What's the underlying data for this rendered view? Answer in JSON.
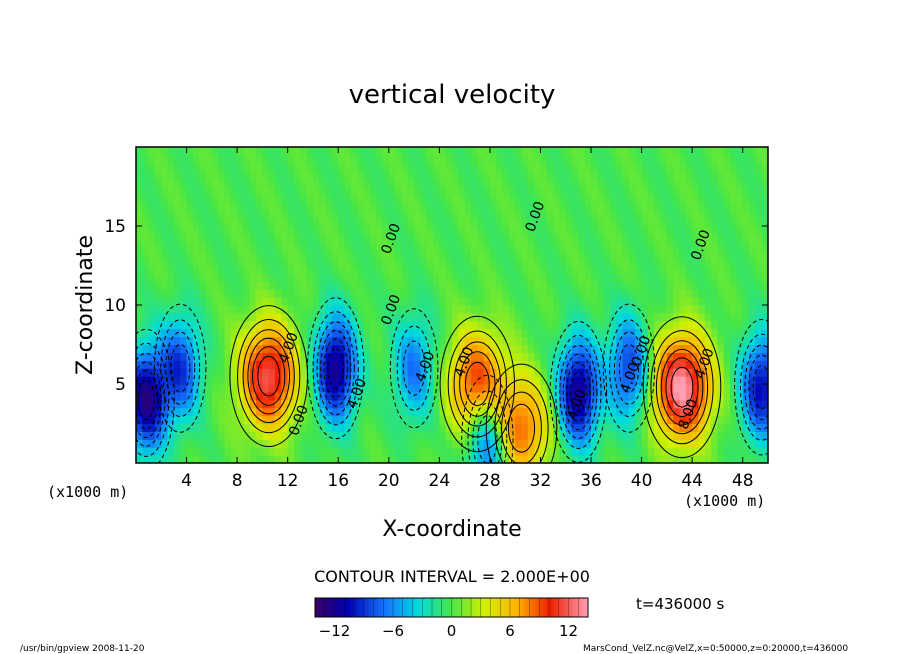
{
  "chart_data": {
    "type": "heatmap",
    "title": "vertical velocity",
    "xlabel": "X-coordinate",
    "ylabel": "Z-coordinate",
    "x_unit": "(x1000 m)",
    "z_unit": "(x1000 m)",
    "xlim": [
      0,
      50
    ],
    "ylim": [
      0,
      20
    ],
    "x_ticks": [
      "4",
      "8",
      "12",
      "16",
      "20",
      "24",
      "28",
      "32",
      "36",
      "40",
      "44",
      "48"
    ],
    "y_ticks": [
      "5",
      "10",
      "15"
    ],
    "contour_interval": "CONTOUR INTERVAL = 2.000E+00",
    "contour_labels": [
      {
        "text": "0.00",
        "x": 13.2,
        "z": 2.6
      },
      {
        "text": "4.00",
        "x": 12.4,
        "z": 7.2
      },
      {
        "text": "4.00",
        "x": 17.8,
        "z": 4.3
      },
      {
        "text": "0.00",
        "x": 20.5,
        "z": 14.1
      },
      {
        "text": "0.00",
        "x": 20.5,
        "z": 9.6
      },
      {
        "text": "4.00",
        "x": 23.2,
        "z": 6.0
      },
      {
        "text": "4.00",
        "x": 26.3,
        "z": 6.3
      },
      {
        "text": "0.00",
        "x": 31.9,
        "z": 15.5
      },
      {
        "text": "4.00",
        "x": 35.2,
        "z": 3.6
      },
      {
        "text": "4.00",
        "x": 39.4,
        "z": 5.3
      },
      {
        "text": "0.00",
        "x": 40.3,
        "z": 7.0
      },
      {
        "text": "4.00",
        "x": 45.3,
        "z": 6.2
      },
      {
        "text": "8.00",
        "x": 44.0,
        "z": 3.0
      },
      {
        "text": "0.00",
        "x": 45.0,
        "z": 13.7
      }
    ],
    "colorbar": {
      "min": -14,
      "max": 14,
      "tick_labels": [
        "−12",
        "−6",
        "0",
        "6",
        "12"
      ],
      "tick_values": [
        -12,
        -6,
        0,
        6,
        12
      ]
    },
    "extrema": [
      {
        "sign": "positive",
        "x": 10.5,
        "z": 5.5,
        "value": 12
      },
      {
        "sign": "positive",
        "x": 27.0,
        "z": 5.0,
        "value": 10
      },
      {
        "sign": "positive",
        "x": 43.2,
        "z": 4.8,
        "value": 14
      },
      {
        "sign": "positive",
        "x": 30.5,
        "z": 2.2,
        "value": 8
      },
      {
        "sign": "negative",
        "x": 0.8,
        "z": 4.0,
        "value": -12
      },
      {
        "sign": "negative",
        "x": 15.8,
        "z": 6.0,
        "value": -12
      },
      {
        "sign": "negative",
        "x": 35.0,
        "z": 4.5,
        "value": -12
      },
      {
        "sign": "negative",
        "x": 49.5,
        "z": 4.8,
        "value": -10
      },
      {
        "sign": "negative",
        "x": 3.5,
        "z": 6.0,
        "value": -8
      },
      {
        "sign": "negative",
        "x": 22.0,
        "z": 6.0,
        "value": -6
      },
      {
        "sign": "negative",
        "x": 39.0,
        "z": 6.0,
        "value": -8
      },
      {
        "sign": "negative",
        "x": 27.8,
        "z": 1.5,
        "value": -8
      }
    ]
  },
  "time_label": "t=436000 s",
  "footer": {
    "left": "/usr/bin/gpview   2008-11-20",
    "right": "MarsCond_VelZ.nc@VelZ,x=0:50000,z=0:20000,t=436000"
  }
}
